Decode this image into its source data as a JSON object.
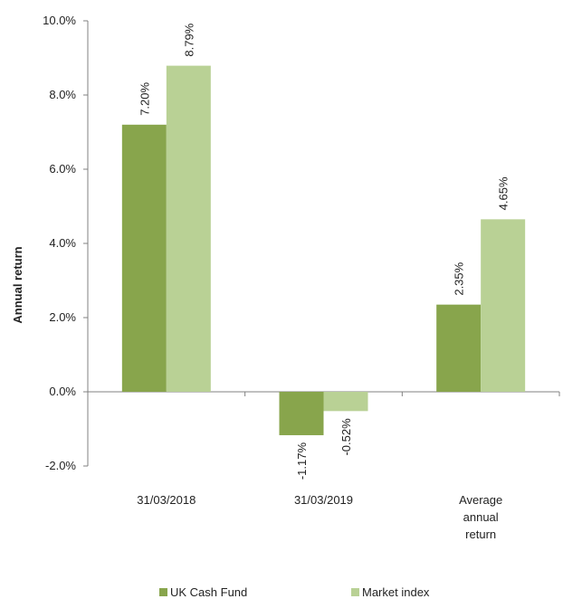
{
  "chart_data": {
    "type": "bar",
    "categories": [
      [
        "31/03/2018"
      ],
      [
        "31/03/2019"
      ],
      [
        "Average",
        "annual",
        "return"
      ]
    ],
    "series": [
      {
        "name": "UK Cash Fund",
        "values": [
          7.2,
          -1.17,
          2.35
        ],
        "labels": [
          "7.20%",
          "-1.17%",
          "2.35%"
        ],
        "color": "#88a54c"
      },
      {
        "name": "Market index",
        "values": [
          8.79,
          -0.52,
          4.65
        ],
        "labels": [
          "8.79%",
          "-0.52%",
          "4.65%"
        ],
        "color": "#b9d195"
      }
    ],
    "ylabel": "Annual return",
    "ylim": [
      -2,
      10
    ],
    "yticks": [
      -2,
      0,
      2,
      4,
      6,
      8,
      10
    ],
    "ytick_labels": [
      "-2.0%",
      "0.0%",
      "2.0%",
      "4.0%",
      "6.0%",
      "8.0%",
      "10.0%"
    ],
    "grid": false,
    "legend_position": "bottom"
  }
}
